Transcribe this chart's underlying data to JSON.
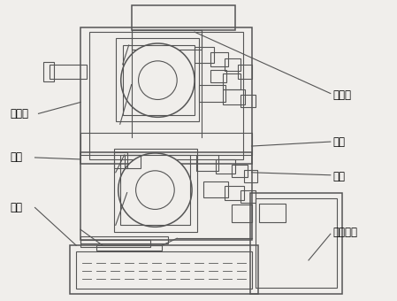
{
  "bg_color": "#f0eeeb",
  "line_color": "#555555",
  "fig_width": 4.49,
  "fig_height": 3.4,
  "dpi": 100,
  "labels": {
    "kongxinzhou": "空心轴",
    "donglun": "动轮",
    "youcao": "油槽",
    "kongzhi_fa": "控制阀",
    "dinglun": "定轮",
    "tulv": "凸缘",
    "re_jiaohuan_qi": "热交换器"
  },
  "font_size": 8.5
}
